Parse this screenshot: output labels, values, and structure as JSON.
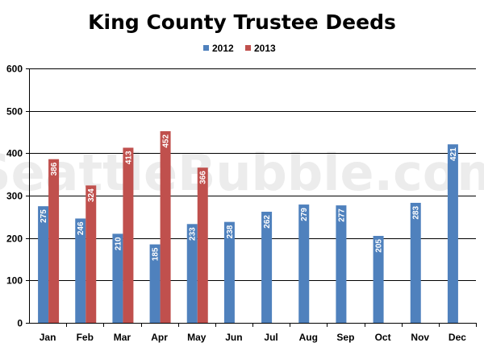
{
  "colors": {
    "series_2012": "#4f81bd",
    "series_2013": "#c0504d",
    "grid": "#000000",
    "watermark": "#e9e9e9"
  },
  "watermark_text": "SeattleBubble.com",
  "chart_data": {
    "type": "bar",
    "title": "King County Trustee Deeds",
    "xlabel": "",
    "ylabel": "",
    "categories": [
      "Jan",
      "Feb",
      "Mar",
      "Apr",
      "May",
      "Jun",
      "Jul",
      "Aug",
      "Sep",
      "Oct",
      "Nov",
      "Dec"
    ],
    "series": [
      {
        "name": "2012",
        "values": [
          275,
          246,
          210,
          185,
          233,
          238,
          262,
          279,
          277,
          205,
          283,
          421
        ]
      },
      {
        "name": "2013",
        "values": [
          386,
          324,
          413,
          452,
          366,
          null,
          null,
          null,
          null,
          null,
          null,
          null
        ]
      }
    ],
    "ylim": [
      0,
      600
    ],
    "yticks": [
      0,
      100,
      200,
      300,
      400,
      500,
      600
    ],
    "grid": true,
    "legend": "top-center",
    "data_labels": true
  }
}
